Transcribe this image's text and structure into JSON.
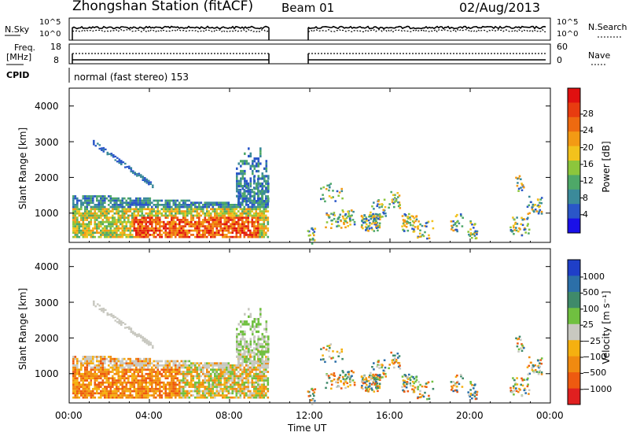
{
  "header": {
    "title": "Zhongshan Station (fitACF)",
    "beam": "Beam 01",
    "date": "02/Aug/2013"
  },
  "top_panels": {
    "nsky": {
      "left_label": "N.Sky",
      "left_ticks": [
        "10^5",
        "10^0"
      ],
      "right_ticks": [
        "10^5",
        "10^0"
      ],
      "right_label": "N.Search"
    },
    "freq": {
      "left_label_line1": "Freq.",
      "left_label_line2": "[MHz]",
      "left_ticks": [
        "18",
        "8"
      ],
      "right_ticks": [
        "60",
        "0"
      ],
      "right_label": "Nave"
    },
    "cpid": {
      "label": "CPID",
      "text": "normal (fast stereo) 153"
    }
  },
  "chart_data": [
    {
      "type": "heatmap",
      "panel": "power",
      "ylabel": "Slant Range [km]",
      "xlabel": "",
      "y_ticks": [
        "4000",
        "3000",
        "2000",
        "1000"
      ],
      "ylim": [
        180,
        4500
      ],
      "xlim": [
        "00:00",
        "24:00"
      ],
      "colorbar": {
        "label": "Power [dB]",
        "ticks": [
          "28",
          "24",
          "20",
          "16",
          "12",
          "8",
          "4"
        ],
        "colors": [
          "#1a10e8",
          "#2a56c8",
          "#3b8a9a",
          "#4ea868",
          "#8cc63c",
          "#f2c21c",
          "#f39a14",
          "#ee6a10",
          "#e83c10",
          "#e01010"
        ]
      },
      "gaps": [
        [
          "10:00",
          "12:00"
        ]
      ]
    },
    {
      "type": "heatmap",
      "panel": "velocity",
      "ylabel": "Slant Range [km]",
      "xlabel": "Time UT",
      "y_ticks": [
        "4000",
        "3000",
        "2000",
        "1000"
      ],
      "ylim": [
        180,
        4500
      ],
      "xlim": [
        "00:00",
        "24:00"
      ],
      "x_ticks": [
        "00:00",
        "04:00",
        "08:00",
        "12:00",
        "16:00",
        "20:00",
        "00:00"
      ],
      "colorbar": {
        "label": "Velocity [m s⁻¹]",
        "ticks": [
          "1000",
          "500",
          "100",
          "25",
          "−25",
          "−100",
          "−500",
          "−1000"
        ],
        "colors": [
          "#1f3fc8",
          "#2c6fa8",
          "#3f8a6a",
          "#70c040",
          "#c8c8c0",
          "#f5b010",
          "#f08a10",
          "#ee5a10",
          "#e02020"
        ]
      },
      "gaps": [
        [
          "10:00",
          "12:00"
        ]
      ]
    }
  ]
}
